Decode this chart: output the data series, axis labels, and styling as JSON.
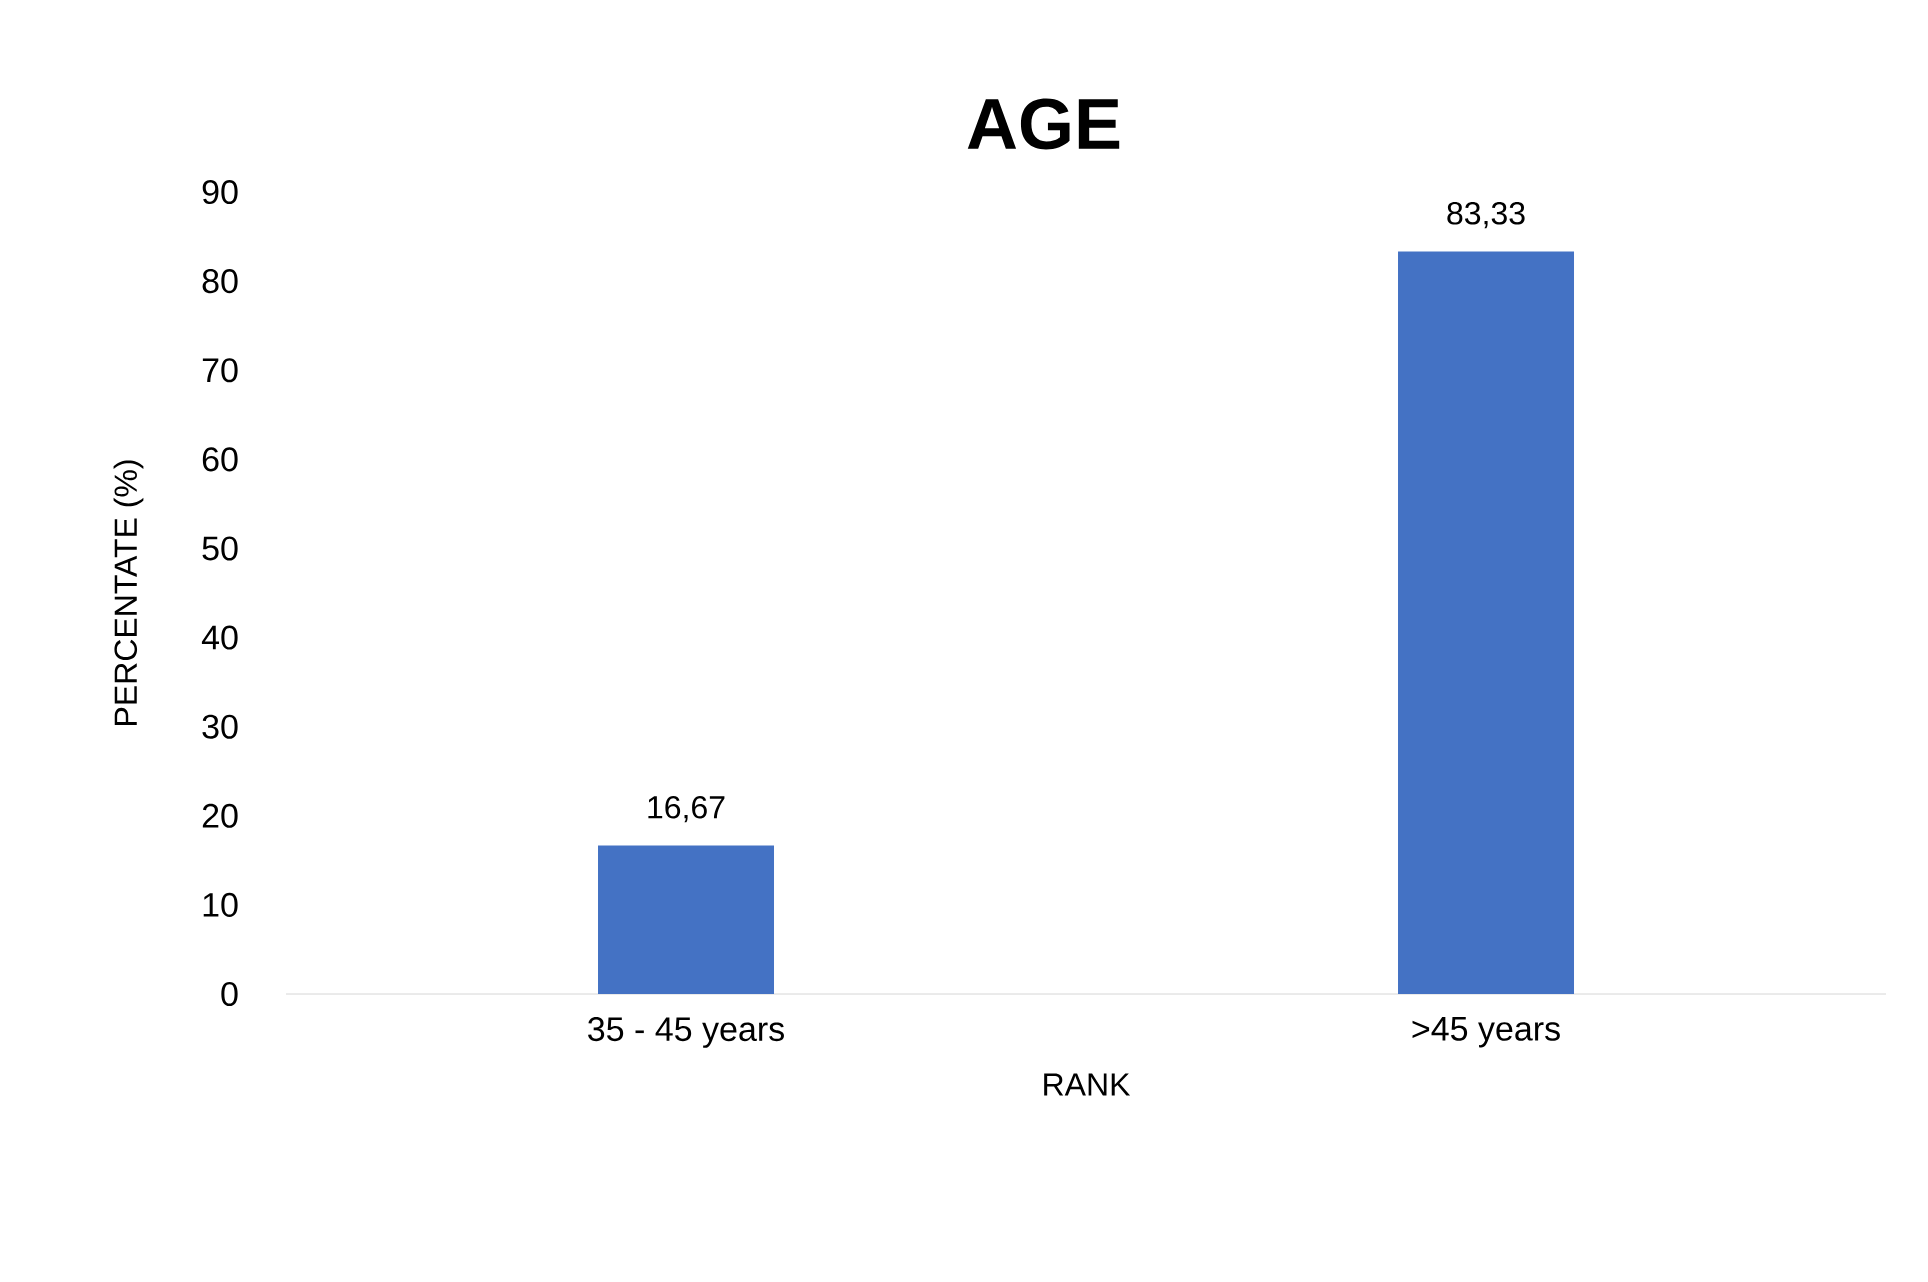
{
  "chart_data": {
    "type": "bar",
    "title": "AGE",
    "xlabel": "RANK",
    "ylabel": "PERCENTATE (%)",
    "categories": [
      "35 - 45 years",
      ">45 years"
    ],
    "values": [
      16.67,
      83.33
    ],
    "value_labels": [
      "16,67",
      "83,33"
    ],
    "color": "#4472c4",
    "ylim": [
      0,
      90
    ],
    "yticks": [
      0,
      10,
      20,
      30,
      40,
      50,
      60,
      70,
      80,
      90
    ]
  }
}
